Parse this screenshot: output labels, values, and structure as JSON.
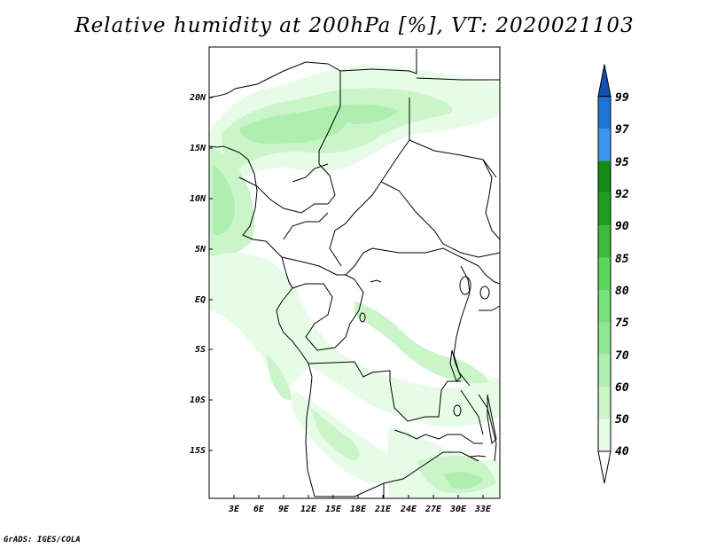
{
  "title": "Relative humidity at 200hPa [%], VT: 2020021103",
  "credit": "GrADS: IGES/COLA",
  "map": {
    "lat_labels": [
      "20N",
      "15N",
      "10N",
      "5N",
      "EQ",
      "5S",
      "10S",
      "15S"
    ],
    "lon_labels": [
      "3E",
      "6E",
      "9E",
      "12E",
      "15E",
      "18E",
      "21E",
      "24E",
      "27E",
      "30E",
      "33E"
    ],
    "field": "Relative humidity",
    "level": "200hPa",
    "unit": "%",
    "valid_time": "2020021103"
  },
  "colorbar": {
    "levels": [
      "40",
      "50",
      "60",
      "70",
      "75",
      "80",
      "85",
      "90",
      "92",
      "95",
      "97",
      "99"
    ],
    "colors": [
      "#ffffff",
      "#e6fce6",
      "#c9f5c9",
      "#aeeeae",
      "#92e792",
      "#78e078",
      "#5cd65c",
      "#3cbc3c",
      "#1e9e1e",
      "#168a16",
      "#3c96ee",
      "#2074d8",
      "#1450b4"
    ]
  }
}
